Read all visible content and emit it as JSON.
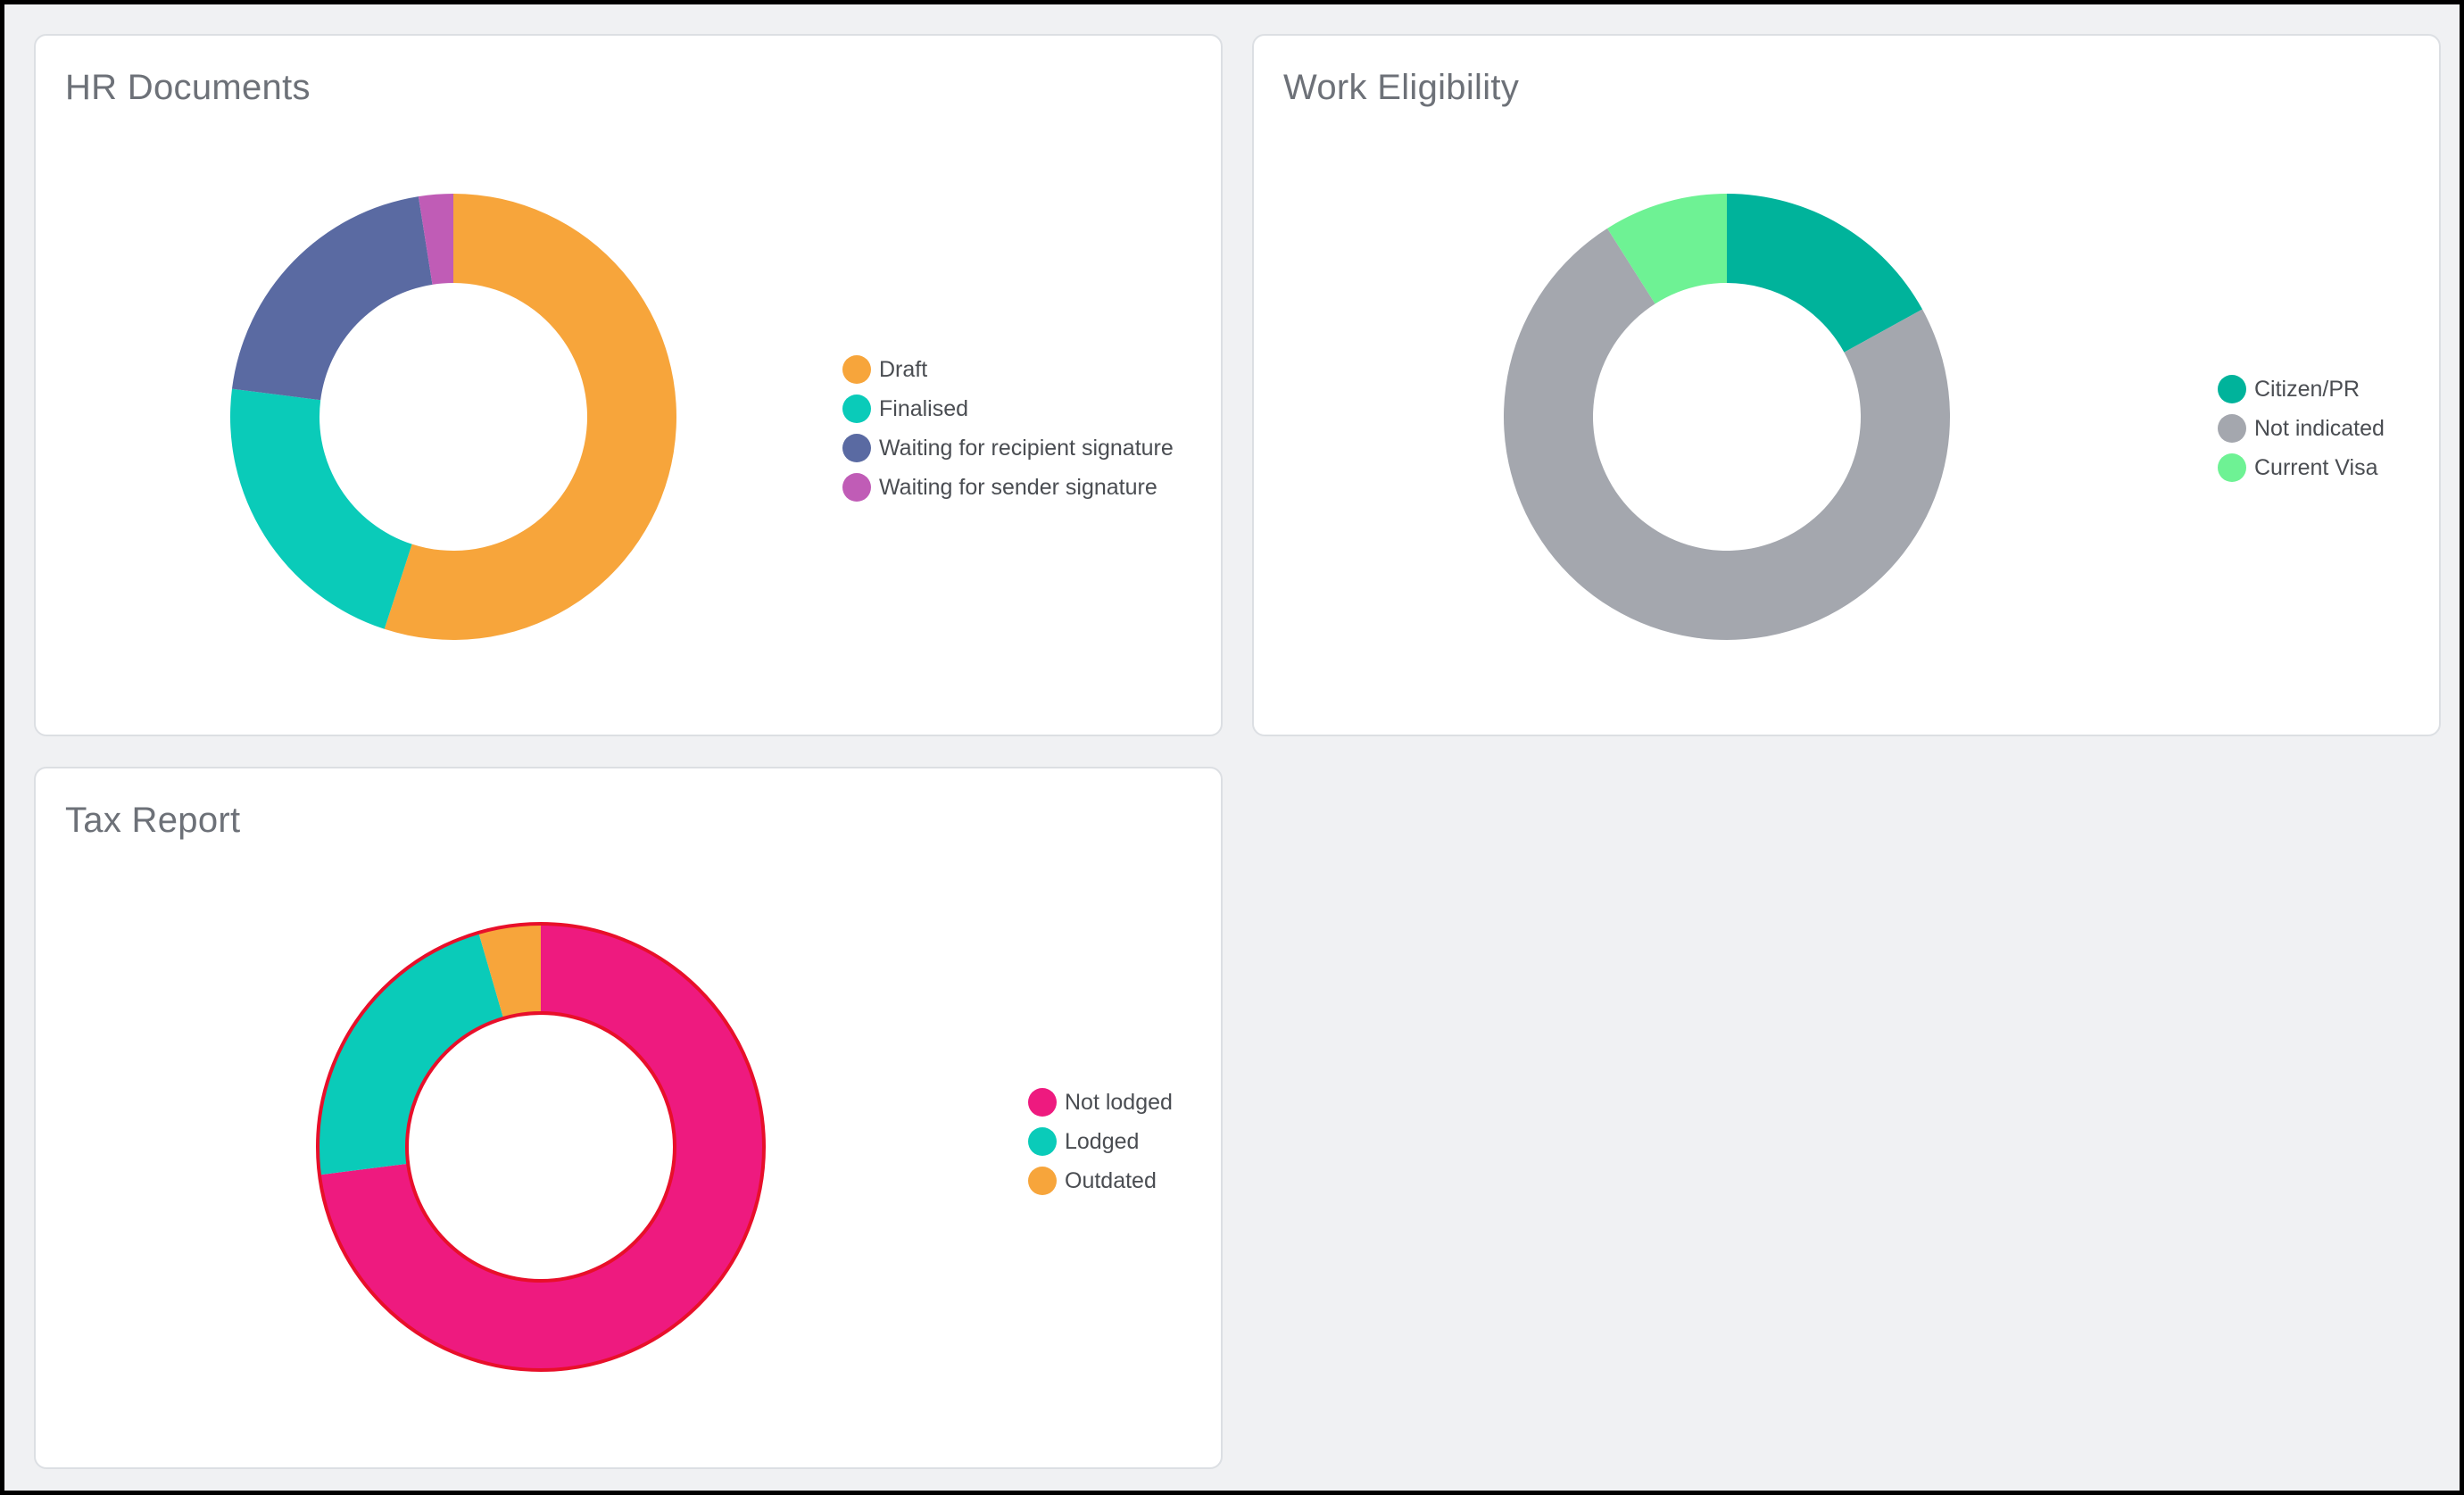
{
  "chart_data": [
    {
      "type": "pie",
      "title": "HR Documents",
      "legend": "right",
      "categories": [
        "Draft",
        "Finalised",
        "Waiting for recipient signature",
        "Waiting for sender signature"
      ],
      "values": [
        55,
        22,
        20.5,
        2.5
      ],
      "colors": [
        "#f7a53b",
        "#0acbb9",
        "#5a6aa2",
        "#c05cb6"
      ]
    },
    {
      "type": "pie",
      "title": "Work Eligibility",
      "legend": "right",
      "categories": [
        "Citizen/PR",
        "Not indicated",
        "Current Visa"
      ],
      "values": [
        17,
        74,
        9
      ],
      "colors": [
        "#00b39b",
        "#a4a7ae",
        "#6ef294"
      ]
    },
    {
      "type": "pie",
      "title": "Tax Report",
      "legend": "right",
      "categories": [
        "Not lodged",
        "Lodged",
        "Outdated"
      ],
      "values": [
        73,
        22.5,
        4.5
      ],
      "colors": [
        "#ee1a7f",
        "#0acbb9",
        "#f7a53b"
      ],
      "highlight_stroke": "#e80f2a"
    }
  ]
}
